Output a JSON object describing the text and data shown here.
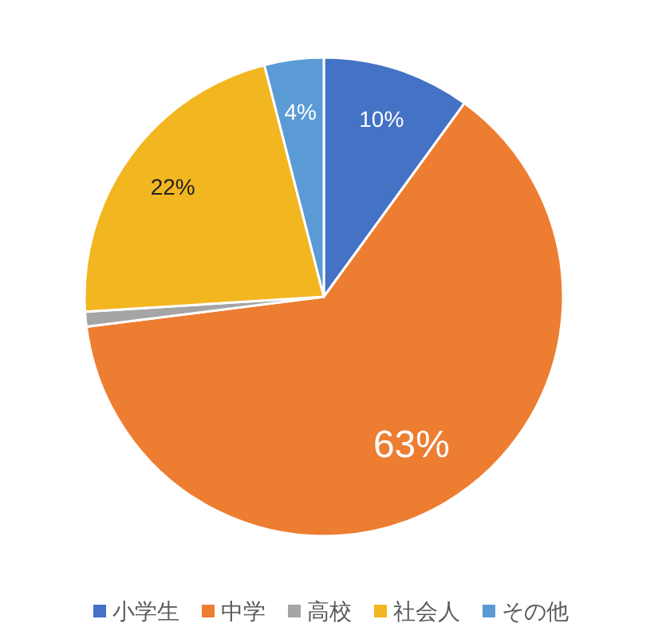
{
  "chart_data": {
    "type": "pie",
    "categories": [
      "小学生",
      "中学",
      "高校",
      "社会人",
      "その他"
    ],
    "values": [
      10,
      63,
      1,
      22,
      4
    ],
    "colors": [
      "#4472c4",
      "#ed7d31",
      "#a5a5a5",
      "#f2b620",
      "#5b9bd5"
    ],
    "value_labels": [
      "10%",
      "63%",
      null,
      "22%",
      "4%"
    ],
    "legend": "bottom"
  }
}
